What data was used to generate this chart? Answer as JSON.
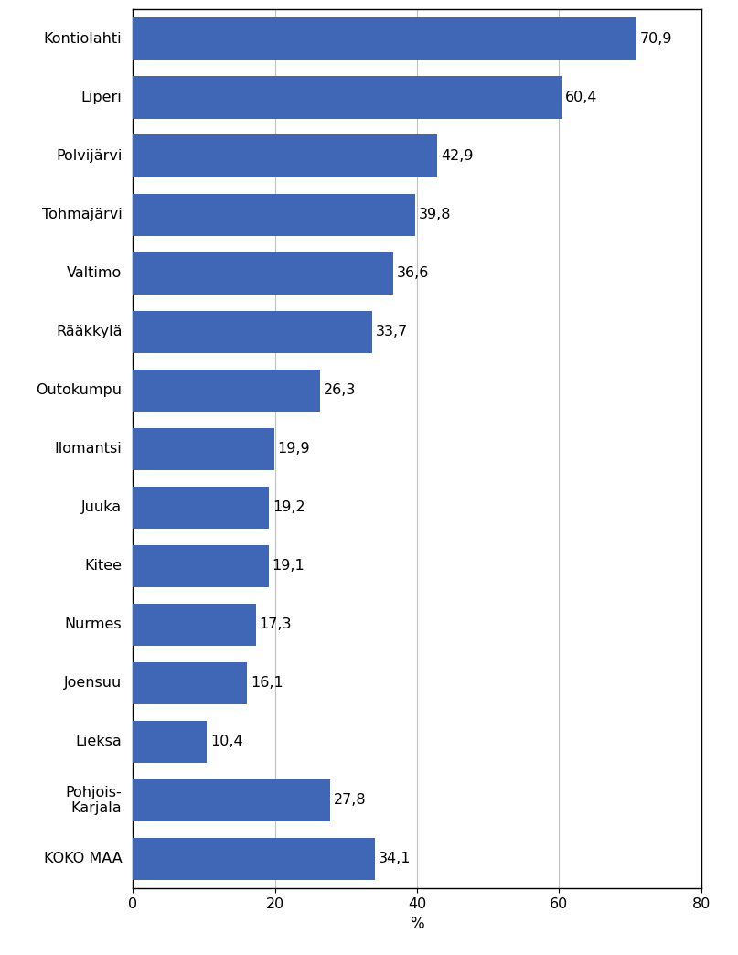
{
  "categories": [
    "KOKO MAA",
    "Pohjois-\nKarjala",
    "Lieksa",
    "Joensuu",
    "Nurmes",
    "Kitee",
    "Juuka",
    "Ilomantsi",
    "Outokumpu",
    "Rääkkylä",
    "Valtimo",
    "Tohmajärvi",
    "Polvijärvi",
    "Liperi",
    "Kontiolahti"
  ],
  "values": [
    34.1,
    27.8,
    10.4,
    16.1,
    17.3,
    19.1,
    19.2,
    19.9,
    26.3,
    33.7,
    36.6,
    39.8,
    42.9,
    60.4,
    70.9
  ],
  "bar_color": "#3F67B5",
  "xlabel": "%",
  "xlim": [
    0,
    80
  ],
  "xticks": [
    0,
    20,
    40,
    60,
    80
  ],
  "grid_color": "#C0C0C0",
  "background_color": "#FFFFFF",
  "label_fontsize": 11.5,
  "value_fontsize": 11.5,
  "xlabel_fontsize": 12
}
